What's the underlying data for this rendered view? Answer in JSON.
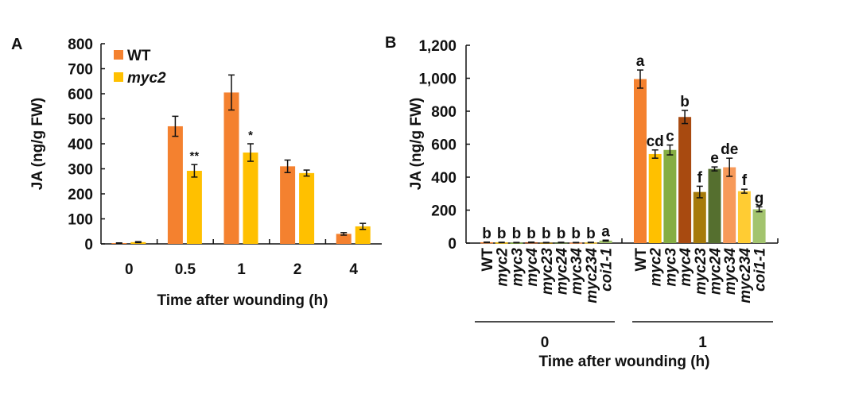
{
  "chart_data": [
    {
      "panel": "A",
      "type": "bar",
      "title": "",
      "xlabel": "Time after wounding (h)",
      "ylabel": "JA (ng/g FW)",
      "ylim": [
        0,
        800
      ],
      "yticks": [
        "0",
        "100",
        "200",
        "300",
        "400",
        "500",
        "600",
        "700",
        "800"
      ],
      "categories": [
        "0",
        "0.5",
        "1",
        "2",
        "4"
      ],
      "legend_position": "top-left",
      "series": [
        {
          "name": "WT",
          "color": "#F4812F",
          "values": [
            3,
            470,
            605,
            310,
            40
          ],
          "errors": [
            1,
            40,
            70,
            25,
            5
          ],
          "annotations": [
            "",
            "",
            "",
            "",
            ""
          ]
        },
        {
          "name": "myc2",
          "color": "#FFC000",
          "values": [
            7,
            292,
            365,
            283,
            70
          ],
          "errors": [
            2,
            25,
            35,
            12,
            12
          ],
          "annotations": [
            "",
            "**",
            "*",
            "",
            ""
          ]
        }
      ]
    },
    {
      "panel": "B",
      "type": "bar",
      "title": "",
      "xlabel": "Time after wounding (h)",
      "ylabel": "JA (ng/g FW)",
      "ylim": [
        0,
        1200
      ],
      "yticks": [
        "0",
        "200",
        "400",
        "600",
        "800",
        "1,000",
        "1,200"
      ],
      "groups": [
        {
          "label": "0",
          "genotypes": [
            "WT",
            "myc2",
            "myc3",
            "myc4",
            "myc23",
            "myc24",
            "myc34",
            "myc234",
            "coi1-1"
          ],
          "values": [
            5,
            4,
            3,
            5,
            3,
            4,
            3,
            4,
            15
          ],
          "errors": [
            1,
            1,
            1,
            1,
            1,
            1,
            1,
            1,
            3
          ],
          "letters": [
            "b",
            "b",
            "b",
            "b",
            "b",
            "b",
            "b",
            "b",
            "a"
          ],
          "colors": [
            "#F4812F",
            "#FFC000",
            "#86AE43",
            "#A84A10",
            "#A67A0A",
            "#556F2F",
            "#F79A5A",
            "#FFCC33",
            "#A3C46E"
          ]
        },
        {
          "label": "1",
          "genotypes": [
            "WT",
            "myc2",
            "myc3",
            "myc4",
            "myc23",
            "myc24",
            "myc34",
            "myc234",
            "coi1-1"
          ],
          "values": [
            995,
            540,
            565,
            765,
            310,
            450,
            460,
            315,
            205
          ],
          "errors": [
            55,
            25,
            30,
            40,
            35,
            12,
            55,
            12,
            15
          ],
          "letters": [
            "a",
            "cd",
            "c",
            "b",
            "f",
            "e",
            "de",
            "f",
            "g"
          ],
          "colors": [
            "#F4812F",
            "#FFC000",
            "#86AE43",
            "#A84A10",
            "#A67A0A",
            "#556F2F",
            "#F79A5A",
            "#FFCC33",
            "#A3C46E"
          ]
        }
      ]
    }
  ]
}
